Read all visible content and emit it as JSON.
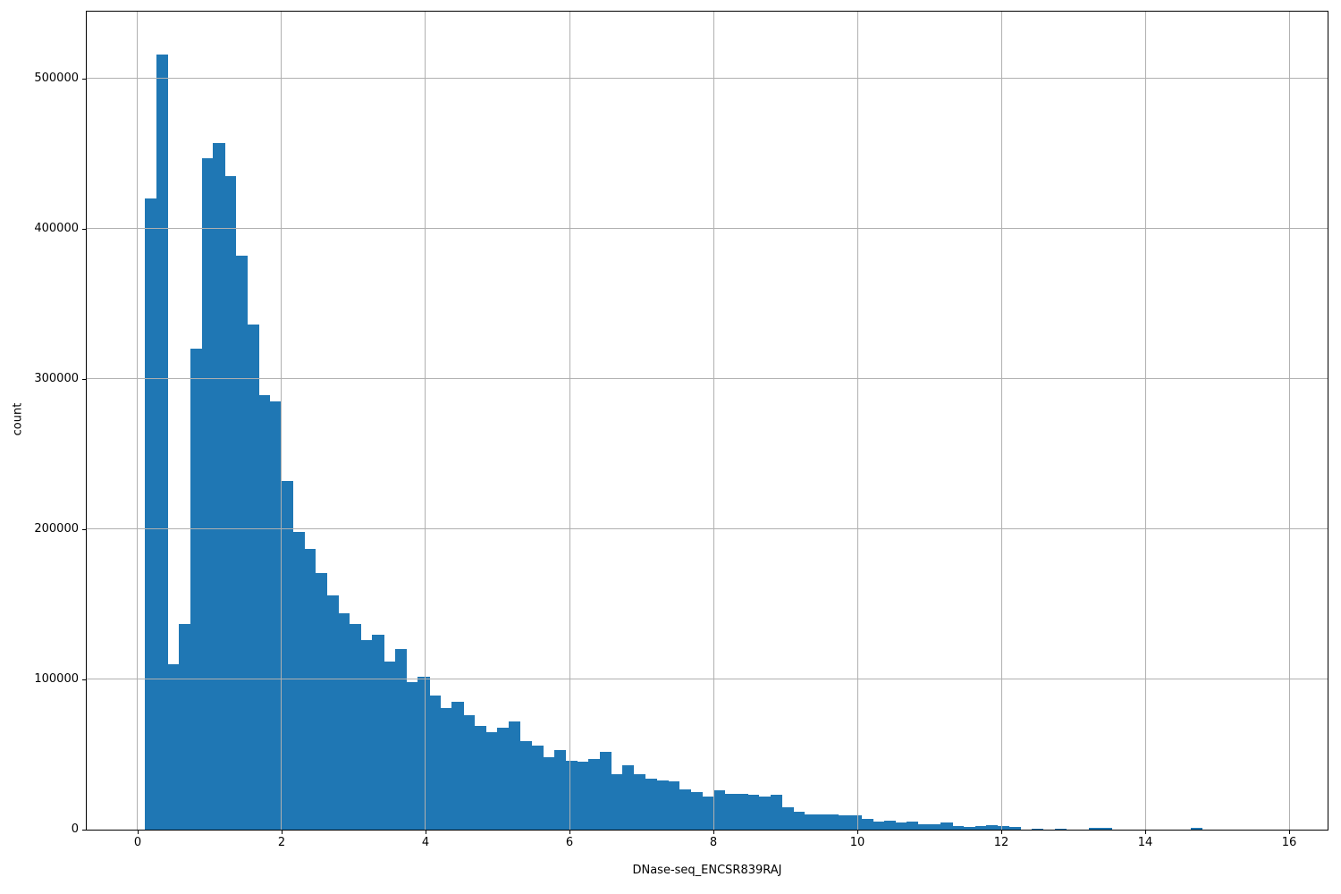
{
  "figure": {
    "background": "#ffffff",
    "bar_color": "#1f77b4",
    "grid_color": "#b0b0b0",
    "spine_color": "#000000"
  },
  "chart_data": {
    "type": "bar",
    "subtype": "histogram",
    "title": "",
    "xlabel": "DNase-seq_ENCSR839RAJ",
    "ylabel": "count",
    "grid": true,
    "grid_above_bars": true,
    "legend": "none",
    "xlim": [
      -0.708,
      16.534
    ],
    "ylim": [
      0,
      544500
    ],
    "x_ticks": [
      0,
      2,
      4,
      6,
      8,
      10,
      12,
      14,
      16
    ],
    "x_tick_labels": [
      "0",
      "2",
      "4",
      "6",
      "8",
      "10",
      "12",
      "14",
      "16"
    ],
    "y_ticks": [
      0,
      100000,
      200000,
      300000,
      400000,
      500000
    ],
    "y_tick_labels": [
      "0",
      "100000",
      "200000",
      "300000",
      "400000",
      "500000"
    ],
    "bin_start": 0.1,
    "bin_width": 0.158,
    "counts": [
      420000,
      516000,
      110000,
      137000,
      320000,
      447000,
      457000,
      435000,
      382000,
      336000,
      289000,
      285000,
      232000,
      198000,
      187000,
      171000,
      156000,
      144000,
      137000,
      126000,
      130000,
      112000,
      120000,
      98000,
      102000,
      89000,
      81000,
      85000,
      76000,
      69000,
      65000,
      68000,
      72000,
      59000,
      56000,
      48000,
      53000,
      46000,
      45000,
      47000,
      52000,
      37000,
      43000,
      37000,
      34000,
      33000,
      32000,
      27000,
      25000,
      22000,
      26000,
      24000,
      24000,
      23000,
      22000,
      23000,
      15000,
      12000,
      10000,
      10000,
      10000,
      9500,
      9500,
      7000,
      5500,
      6000,
      5000,
      5200,
      3600,
      3600,
      4600,
      2200,
      1800,
      2600,
      3000,
      2200,
      1600,
      0,
      800,
      0,
      800,
      0,
      0,
      900,
      900,
      0,
      0,
      0,
      0,
      0,
      0,
      0,
      900,
      0
    ]
  }
}
